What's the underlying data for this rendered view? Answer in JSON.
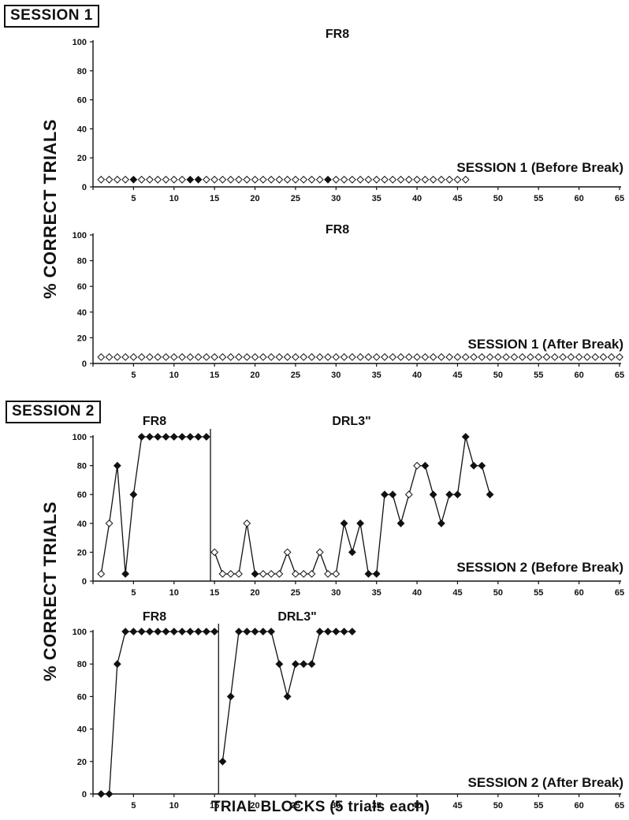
{
  "sessions": [
    {
      "label": "SESSION 1",
      "ylabel": "% CORRECT TRIALS"
    },
    {
      "label": "SESSION 2",
      "ylabel": "% CORRECT TRIALS"
    }
  ],
  "xlabel": "TRIAL BLOCKS (5 trials each)",
  "chart_data": [
    {
      "type": "line",
      "phase_labels": [
        "FR8"
      ],
      "caption": "SESSION 1 (Before Break)",
      "xlim": [
        0,
        65
      ],
      "ylim": [
        0,
        100
      ],
      "xticks": [
        0,
        5,
        10,
        15,
        20,
        25,
        30,
        35,
        40,
        45,
        50,
        55,
        60,
        65
      ],
      "yticks": [
        0,
        20,
        40,
        60,
        80,
        100
      ],
      "connect_lines": false,
      "phase_lines": [],
      "points": [
        [
          1,
          5,
          "open"
        ],
        [
          2,
          5,
          "open"
        ],
        [
          3,
          5,
          "open"
        ],
        [
          4,
          5,
          "open"
        ],
        [
          5,
          5,
          "filled"
        ],
        [
          6,
          5,
          "open"
        ],
        [
          7,
          5,
          "open"
        ],
        [
          8,
          5,
          "open"
        ],
        [
          9,
          5,
          "open"
        ],
        [
          10,
          5,
          "open"
        ],
        [
          11,
          5,
          "open"
        ],
        [
          12,
          5,
          "filled"
        ],
        [
          13,
          5,
          "filled"
        ],
        [
          14,
          5,
          "open"
        ],
        [
          15,
          5,
          "open"
        ],
        [
          16,
          5,
          "open"
        ],
        [
          17,
          5,
          "open"
        ],
        [
          18,
          5,
          "open"
        ],
        [
          19,
          5,
          "open"
        ],
        [
          20,
          5,
          "open"
        ],
        [
          21,
          5,
          "open"
        ],
        [
          22,
          5,
          "open"
        ],
        [
          23,
          5,
          "open"
        ],
        [
          24,
          5,
          "open"
        ],
        [
          25,
          5,
          "open"
        ],
        [
          26,
          5,
          "open"
        ],
        [
          27,
          5,
          "open"
        ],
        [
          28,
          5,
          "open"
        ],
        [
          29,
          5,
          "filled"
        ],
        [
          30,
          5,
          "open"
        ],
        [
          31,
          5,
          "open"
        ],
        [
          32,
          5,
          "open"
        ],
        [
          33,
          5,
          "open"
        ],
        [
          34,
          5,
          "open"
        ],
        [
          35,
          5,
          "open"
        ],
        [
          36,
          5,
          "open"
        ],
        [
          37,
          5,
          "open"
        ],
        [
          38,
          5,
          "open"
        ],
        [
          39,
          5,
          "open"
        ],
        [
          40,
          5,
          "open"
        ],
        [
          41,
          5,
          "open"
        ],
        [
          42,
          5,
          "open"
        ],
        [
          43,
          5,
          "open"
        ],
        [
          44,
          5,
          "open"
        ],
        [
          45,
          5,
          "open"
        ],
        [
          46,
          5,
          "open"
        ]
      ]
    },
    {
      "type": "line",
      "phase_labels": [
        "FR8"
      ],
      "caption": "SESSION 1 (After Break)",
      "xlim": [
        0,
        65
      ],
      "ylim": [
        0,
        100
      ],
      "xticks": [
        0,
        5,
        10,
        15,
        20,
        25,
        30,
        35,
        40,
        45,
        50,
        55,
        60,
        65
      ],
      "yticks": [
        0,
        20,
        40,
        60,
        80,
        100
      ],
      "connect_lines": false,
      "phase_lines": [],
      "points": [
        [
          1,
          5,
          "open"
        ],
        [
          2,
          5,
          "open"
        ],
        [
          3,
          5,
          "open"
        ],
        [
          4,
          5,
          "open"
        ],
        [
          5,
          5,
          "open"
        ],
        [
          6,
          5,
          "open"
        ],
        [
          7,
          5,
          "open"
        ],
        [
          8,
          5,
          "open"
        ],
        [
          9,
          5,
          "open"
        ],
        [
          10,
          5,
          "open"
        ],
        [
          11,
          5,
          "open"
        ],
        [
          12,
          5,
          "open"
        ],
        [
          13,
          5,
          "open"
        ],
        [
          14,
          5,
          "open"
        ],
        [
          15,
          5,
          "open"
        ],
        [
          16,
          5,
          "open"
        ],
        [
          17,
          5,
          "open"
        ],
        [
          18,
          5,
          "open"
        ],
        [
          19,
          5,
          "open"
        ],
        [
          20,
          5,
          "open"
        ],
        [
          21,
          5,
          "open"
        ],
        [
          22,
          5,
          "open"
        ],
        [
          23,
          5,
          "open"
        ],
        [
          24,
          5,
          "open"
        ],
        [
          25,
          5,
          "open"
        ],
        [
          26,
          5,
          "open"
        ],
        [
          27,
          5,
          "open"
        ],
        [
          28,
          5,
          "open"
        ],
        [
          29,
          5,
          "open"
        ],
        [
          30,
          5,
          "open"
        ],
        [
          31,
          5,
          "open"
        ],
        [
          32,
          5,
          "open"
        ],
        [
          33,
          5,
          "open"
        ],
        [
          34,
          5,
          "open"
        ],
        [
          35,
          5,
          "open"
        ],
        [
          36,
          5,
          "open"
        ],
        [
          37,
          5,
          "open"
        ],
        [
          38,
          5,
          "open"
        ],
        [
          39,
          5,
          "open"
        ],
        [
          40,
          5,
          "open"
        ],
        [
          41,
          5,
          "open"
        ],
        [
          42,
          5,
          "open"
        ],
        [
          43,
          5,
          "open"
        ],
        [
          44,
          5,
          "open"
        ],
        [
          45,
          5,
          "open"
        ],
        [
          46,
          5,
          "open"
        ],
        [
          47,
          5,
          "open"
        ],
        [
          48,
          5,
          "open"
        ],
        [
          49,
          5,
          "open"
        ],
        [
          50,
          5,
          "open"
        ],
        [
          51,
          5,
          "open"
        ],
        [
          52,
          5,
          "open"
        ],
        [
          53,
          5,
          "open"
        ],
        [
          54,
          5,
          "open"
        ],
        [
          55,
          5,
          "open"
        ],
        [
          56,
          5,
          "open"
        ],
        [
          57,
          5,
          "open"
        ],
        [
          58,
          5,
          "open"
        ],
        [
          59,
          5,
          "open"
        ],
        [
          60,
          5,
          "open"
        ],
        [
          61,
          5,
          "open"
        ],
        [
          62,
          5,
          "open"
        ],
        [
          63,
          5,
          "open"
        ],
        [
          64,
          5,
          "open"
        ],
        [
          65,
          5,
          "open"
        ]
      ]
    },
    {
      "type": "line",
      "phase_labels": [
        "FR8",
        "DRL3\""
      ],
      "caption": "SESSION 2 (Before Break)",
      "xlim": [
        0,
        65
      ],
      "ylim": [
        0,
        100
      ],
      "xticks": [
        0,
        5,
        10,
        15,
        20,
        25,
        30,
        35,
        40,
        45,
        50,
        55,
        60,
        65
      ],
      "yticks": [
        0,
        20,
        40,
        60,
        80,
        100
      ],
      "connect_lines": true,
      "phase_lines": [
        14.5
      ],
      "points": [
        [
          1,
          5,
          "open"
        ],
        [
          2,
          40,
          "open"
        ],
        [
          3,
          80,
          "filled"
        ],
        [
          4,
          5,
          "filled"
        ],
        [
          5,
          60,
          "filled"
        ],
        [
          6,
          100,
          "filled"
        ],
        [
          7,
          100,
          "filled"
        ],
        [
          8,
          100,
          "filled"
        ],
        [
          9,
          100,
          "filled"
        ],
        [
          10,
          100,
          "filled"
        ],
        [
          11,
          100,
          "filled"
        ],
        [
          12,
          100,
          "filled"
        ],
        [
          13,
          100,
          "filled"
        ],
        [
          14,
          100,
          "filled"
        ],
        [
          15,
          20,
          "open"
        ],
        [
          16,
          5,
          "open"
        ],
        [
          17,
          5,
          "open"
        ],
        [
          18,
          5,
          "open"
        ],
        [
          19,
          40,
          "open"
        ],
        [
          20,
          5,
          "filled"
        ],
        [
          21,
          5,
          "open"
        ],
        [
          22,
          5,
          "open"
        ],
        [
          23,
          5,
          "open"
        ],
        [
          24,
          20,
          "open"
        ],
        [
          25,
          5,
          "open"
        ],
        [
          26,
          5,
          "open"
        ],
        [
          27,
          5,
          "open"
        ],
        [
          28,
          20,
          "open"
        ],
        [
          29,
          5,
          "open"
        ],
        [
          30,
          5,
          "open"
        ],
        [
          31,
          40,
          "filled"
        ],
        [
          32,
          20,
          "filled"
        ],
        [
          33,
          40,
          "filled"
        ],
        [
          34,
          5,
          "filled"
        ],
        [
          35,
          5,
          "filled"
        ],
        [
          36,
          60,
          "filled"
        ],
        [
          37,
          60,
          "filled"
        ],
        [
          38,
          40,
          "filled"
        ],
        [
          39,
          60,
          "open"
        ],
        [
          40,
          80,
          "open"
        ],
        [
          41,
          80,
          "filled"
        ],
        [
          42,
          60,
          "filled"
        ],
        [
          43,
          40,
          "filled"
        ],
        [
          44,
          60,
          "filled"
        ],
        [
          45,
          60,
          "filled"
        ],
        [
          46,
          100,
          "filled"
        ],
        [
          47,
          80,
          "filled"
        ],
        [
          48,
          80,
          "filled"
        ],
        [
          49,
          60,
          "filled"
        ]
      ]
    },
    {
      "type": "line",
      "phase_labels": [
        "FR8",
        "DRL3\""
      ],
      "caption": "SESSION 2 (After Break)",
      "xlim": [
        0,
        65
      ],
      "ylim": [
        0,
        100
      ],
      "xticks": [
        0,
        5,
        10,
        15,
        20,
        25,
        30,
        35,
        40,
        45,
        50,
        55,
        60,
        65
      ],
      "yticks": [
        0,
        20,
        40,
        60,
        80,
        100
      ],
      "connect_lines": true,
      "phase_lines": [
        15.5
      ],
      "points": [
        [
          1,
          0,
          "filled"
        ],
        [
          2,
          0,
          "filled"
        ],
        [
          3,
          80,
          "filled"
        ],
        [
          4,
          100,
          "filled"
        ],
        [
          5,
          100,
          "filled"
        ],
        [
          6,
          100,
          "filled"
        ],
        [
          7,
          100,
          "filled"
        ],
        [
          8,
          100,
          "filled"
        ],
        [
          9,
          100,
          "filled"
        ],
        [
          10,
          100,
          "filled"
        ],
        [
          11,
          100,
          "filled"
        ],
        [
          12,
          100,
          "filled"
        ],
        [
          13,
          100,
          "filled"
        ],
        [
          14,
          100,
          "filled"
        ],
        [
          15,
          100,
          "filled"
        ],
        [
          16,
          20,
          "filled"
        ],
        [
          17,
          60,
          "filled"
        ],
        [
          18,
          100,
          "filled"
        ],
        [
          19,
          100,
          "filled"
        ],
        [
          20,
          100,
          "filled"
        ],
        [
          21,
          100,
          "filled"
        ],
        [
          22,
          100,
          "filled"
        ],
        [
          23,
          80,
          "filled"
        ],
        [
          24,
          60,
          "filled"
        ],
        [
          25,
          80,
          "filled"
        ],
        [
          26,
          80,
          "filled"
        ],
        [
          27,
          80,
          "filled"
        ],
        [
          28,
          100,
          "filled"
        ],
        [
          29,
          100,
          "filled"
        ],
        [
          30,
          100,
          "filled"
        ],
        [
          31,
          100,
          "filled"
        ],
        [
          32,
          100,
          "filled"
        ]
      ]
    }
  ]
}
